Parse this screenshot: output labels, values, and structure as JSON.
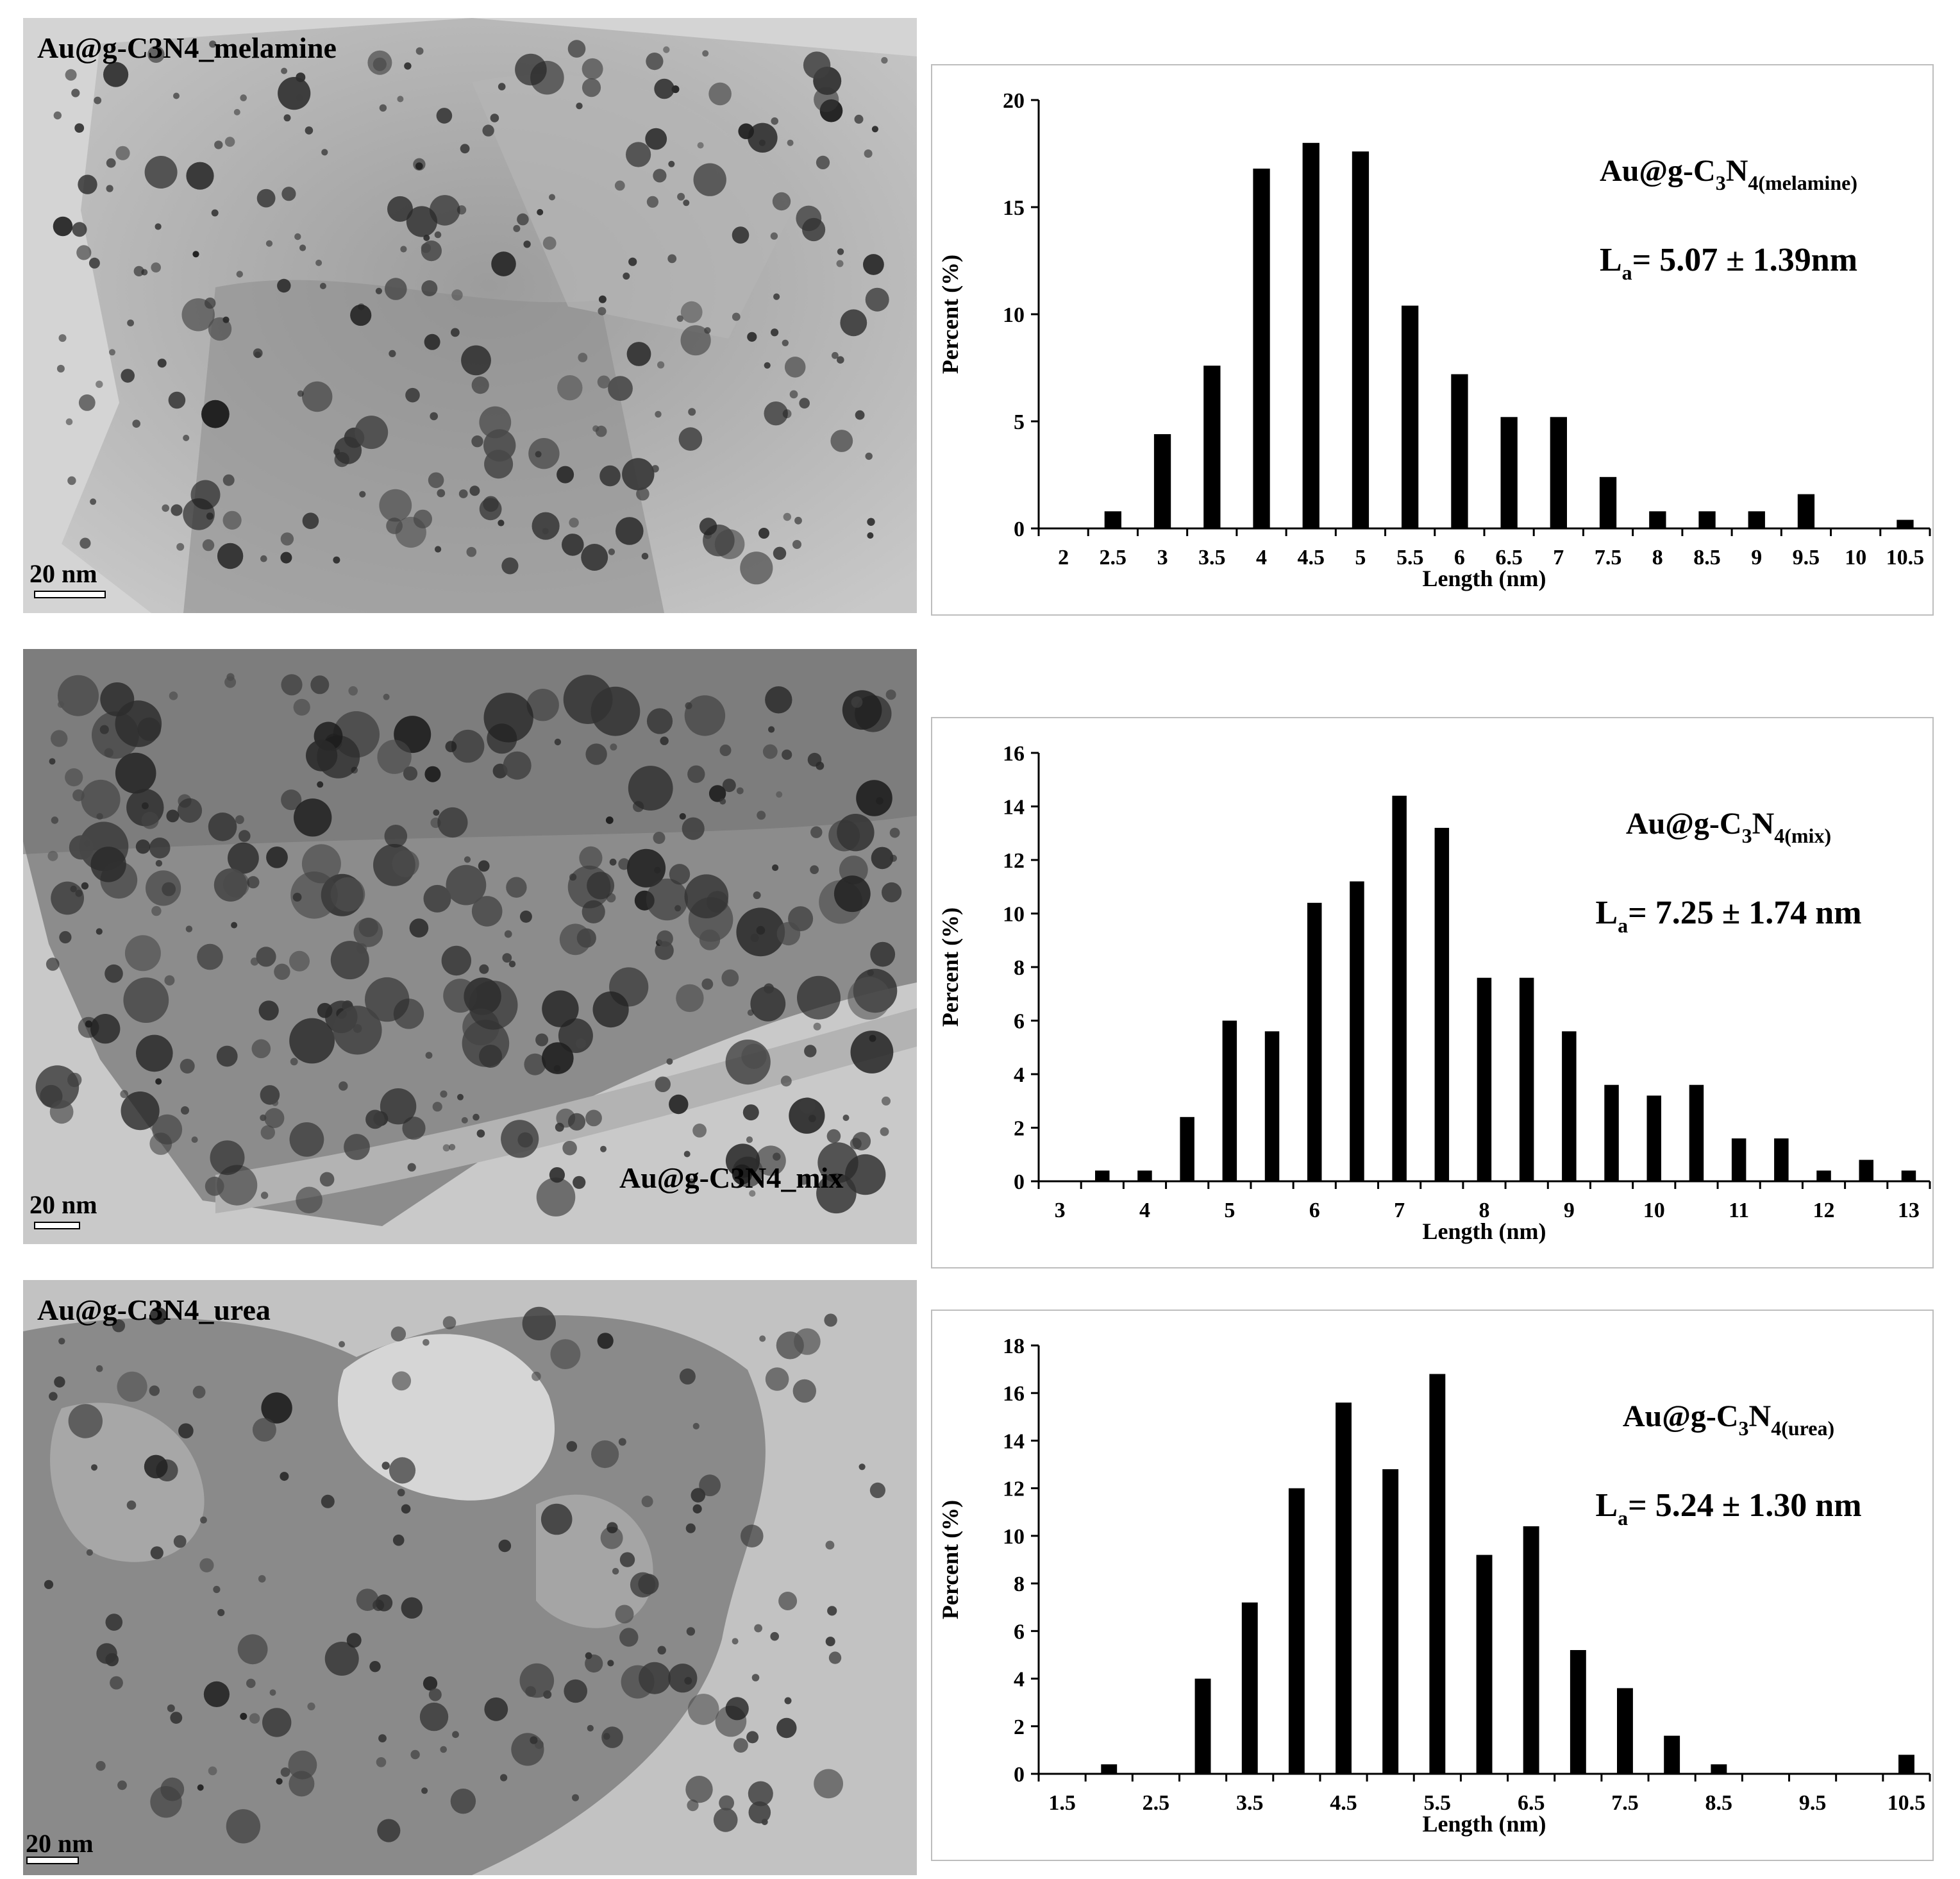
{
  "panels": [
    {
      "tem": {
        "label": "Au@g-C3N4_melamine",
        "scale": "20 nm",
        "label_position": "top-left"
      },
      "chart_data": {
        "type": "bar",
        "title": "Au@g-C3N4(melamine)",
        "title_parts": {
          "a": "Au@g-C",
          "sub1": "3",
          "b": "N",
          "sub2": "4(melamine)"
        },
        "annotation": {
          "prefix": "L",
          "sub": "a",
          "text": "= 5.07 ± 1.39nm"
        },
        "xlabel": "Length (nm)",
        "ylabel": "Percent (%)",
        "ylim": [
          0,
          20
        ],
        "yticks": [
          0,
          5,
          10,
          15,
          20
        ],
        "categories": [
          "2",
          "2.5",
          "3",
          "3.5",
          "4",
          "4.5",
          "5",
          "5.5",
          "6",
          "6.5",
          "7",
          "7.5",
          "8",
          "8.5",
          "9",
          "9.5",
          "10",
          "10.5"
        ],
        "values": [
          0,
          0.8,
          4.4,
          7.6,
          16.8,
          18.0,
          17.6,
          10.4,
          7.2,
          5.2,
          5.2,
          2.4,
          0.8,
          0.8,
          0.8,
          1.6,
          0,
          0.4
        ],
        "xticks": [
          "2",
          "2.5",
          "3",
          "3.5",
          "4",
          "4.5",
          "5",
          "5.5",
          "6",
          "6.5",
          "7",
          "7.5",
          "8",
          "8.5",
          "9",
          "9.5",
          "10",
          "10.5"
        ],
        "grid": false,
        "color": "#000000"
      }
    },
    {
      "tem": {
        "label": "Au@g-C3N4_mix",
        "scale": "20 nm",
        "label_position": "bottom-right"
      },
      "chart_data": {
        "type": "bar",
        "title": "Au@g-C3N4(mix)",
        "title_parts": {
          "a": "Au@g-C",
          "sub1": "3",
          "b": "N",
          "sub2": "4(mix)"
        },
        "annotation": {
          "prefix": "L",
          "sub": "a",
          "text": "= 7.25 ± 1.74 nm"
        },
        "xlabel": "Length (nm)",
        "ylabel": "Percent (%)",
        "ylim": [
          0,
          16
        ],
        "yticks": [
          0,
          2,
          4,
          6,
          8,
          10,
          12,
          14,
          16
        ],
        "categories": [
          "3",
          "3.5",
          "4",
          "4.5",
          "5",
          "5.5",
          "6",
          "6.5",
          "7",
          "7.5",
          "8",
          "8.5",
          "9",
          "9.5",
          "10",
          "10.5",
          "11",
          "11.5",
          "12",
          "12.5",
          "13"
        ],
        "values": [
          0,
          0.4,
          0.4,
          2.4,
          6.0,
          5.6,
          10.4,
          11.2,
          14.4,
          13.2,
          7.6,
          7.6,
          5.6,
          3.6,
          3.2,
          3.6,
          1.6,
          1.6,
          0.4,
          0.8,
          0.4
        ],
        "xticks": [
          "3",
          "4",
          "5",
          "6",
          "7",
          "8",
          "9",
          "10",
          "11",
          "12",
          "13"
        ],
        "grid": false,
        "color": "#000000"
      }
    },
    {
      "tem": {
        "label": "Au@g-C3N4_urea",
        "scale": "20 nm",
        "label_position": "top-left"
      },
      "chart_data": {
        "type": "bar",
        "title": "Au@g-C3N4(urea)",
        "title_parts": {
          "a": "Au@g-C",
          "sub1": "3",
          "b": "N",
          "sub2": "4(urea)"
        },
        "annotation": {
          "prefix": "L",
          "sub": "a",
          "text": "= 5.24 ± 1.30 nm"
        },
        "xlabel": "Length (nm)",
        "ylabel": "Percent (%)",
        "ylim": [
          0,
          18
        ],
        "yticks": [
          0,
          2,
          4,
          6,
          8,
          10,
          12,
          14,
          16,
          18
        ],
        "categories": [
          "1.5",
          "2",
          "2.5",
          "3",
          "3.5",
          "4",
          "4.5",
          "5",
          "5.5",
          "6",
          "6.5",
          "7",
          "7.5",
          "8",
          "8.5",
          "9",
          "9.5",
          "10",
          "10.5"
        ],
        "values": [
          0,
          0.4,
          0,
          4.0,
          7.2,
          12.0,
          15.6,
          12.8,
          16.8,
          9.2,
          10.4,
          5.2,
          3.6,
          1.6,
          0.4,
          0,
          0,
          0,
          0.8
        ],
        "xticks": [
          "1.5",
          "2.5",
          "3.5",
          "4.5",
          "5.5",
          "6.5",
          "7.5",
          "8.5",
          "9.5",
          "10.5"
        ],
        "grid": false,
        "color": "#000000"
      }
    }
  ]
}
